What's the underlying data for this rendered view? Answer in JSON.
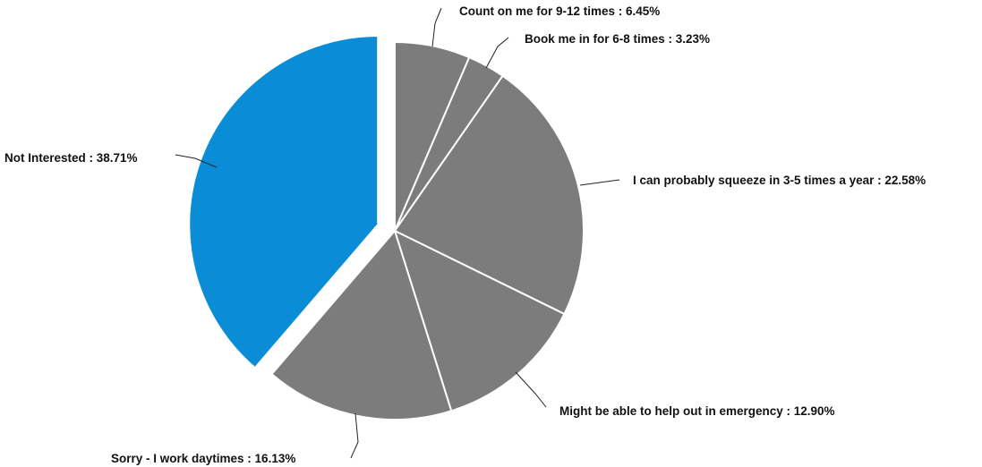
{
  "chart_data": {
    "type": "pie",
    "title": "",
    "exploded_slice": "Not Interested",
    "colors": {
      "highlight": "#0a8dd6",
      "default": "#7c7c7c",
      "separator": "#ffffff",
      "leader": "#222222",
      "text": "#111111"
    },
    "slices": [
      {
        "label": "Count on me for 9-12 times",
        "value": 6.45,
        "display": "Count on me for 9-12 times : 6.45%"
      },
      {
        "label": "Book me in for 6-8 times",
        "value": 3.23,
        "display": "Book me in for 6-8 times : 3.23%"
      },
      {
        "label": "I can probably squeeze in 3-5 times a year",
        "value": 22.58,
        "display": "I can probably squeeze in 3-5 times a year : 22.58%"
      },
      {
        "label": "Might be able to help out in emergency",
        "value": 12.9,
        "display": "Might be able to help out in emergency : 12.90%"
      },
      {
        "label": "Sorry - I work daytimes",
        "value": 16.13,
        "display": "Sorry - I work daytimes : 16.13%"
      },
      {
        "label": "Not Interested",
        "value": 38.71,
        "display": "Not Interested : 38.71%"
      }
    ]
  }
}
